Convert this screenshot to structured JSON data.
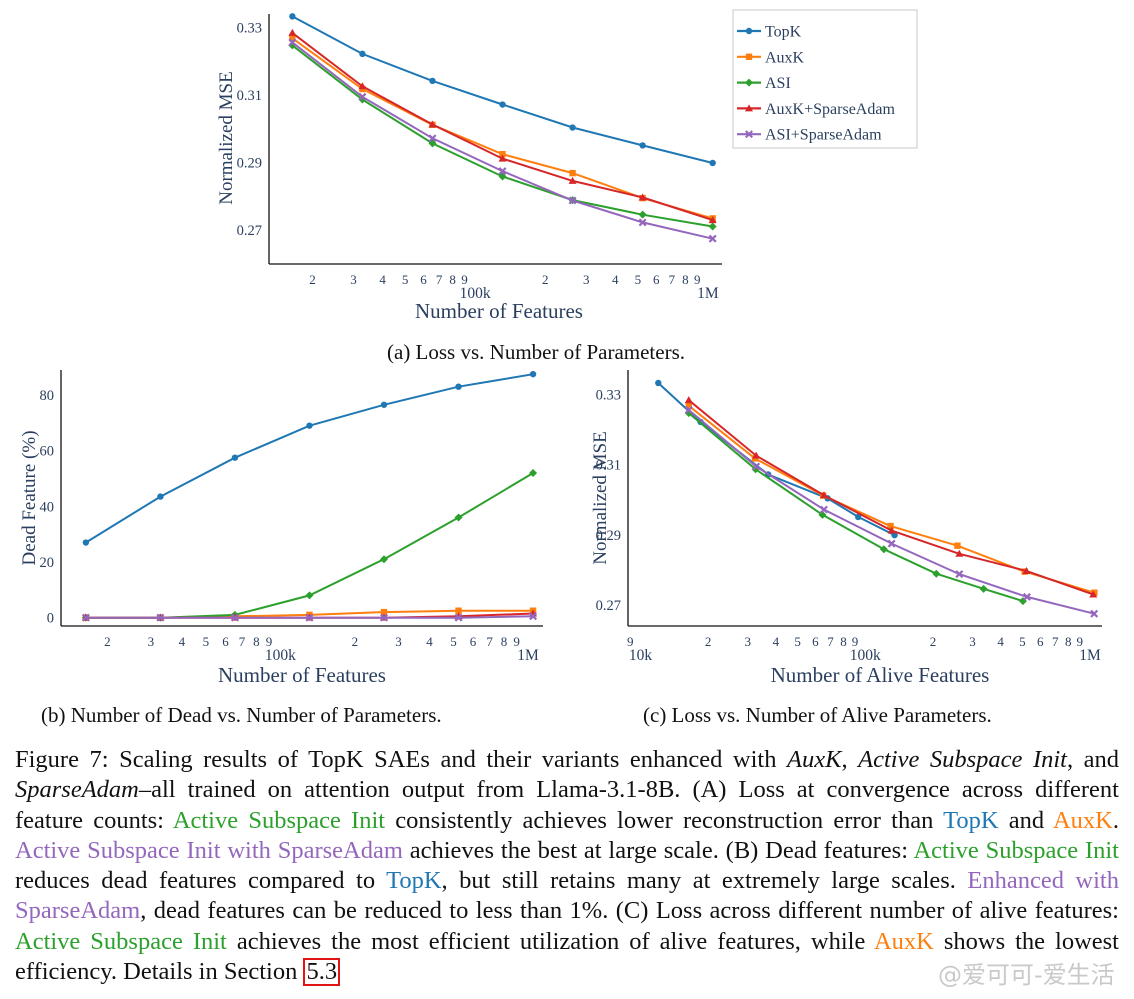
{
  "colors": {
    "TopK": "#1f77b4",
    "AuxK": "#ff7f0e",
    "ASI": "#2ca02c",
    "AuxK+SparseAdam": "#d62728",
    "ASI+SparseAdam": "#9467bd"
  },
  "chart_data": [
    {
      "id": "a",
      "type": "line",
      "xscale": "log",
      "xlim": [
        13000,
        1150000
      ],
      "ylim": [
        0.26,
        0.334
      ],
      "yticks": [
        0.27,
        0.29,
        0.31,
        0.33
      ],
      "ytick_labels": [
        "0.27",
        "0.29",
        "0.31",
        "0.33"
      ],
      "xticks": [
        20000,
        30000,
        40000,
        50000,
        60000,
        70000,
        80000,
        90000,
        100000,
        200000,
        300000,
        400000,
        500000,
        600000,
        700000,
        800000,
        900000,
        1000000
      ],
      "xtick_labels": [
        "2",
        "3",
        "4",
        "5",
        "6",
        "7",
        "8",
        "9",
        "100k",
        "2",
        "3",
        "4",
        "5",
        "6",
        "7",
        "8",
        "9",
        "1M"
      ],
      "xlabel": "Number of Features",
      "ylabel": "Normalized MSE",
      "legend": "top-right",
      "series": [
        {
          "name": "TopK",
          "marker": "circle",
          "x": [
            16384,
            32768,
            65536,
            131072,
            262144,
            524288,
            1048576
          ],
          "y": [
            0.3333,
            0.3222,
            0.3142,
            0.3072,
            0.3004,
            0.2951,
            0.2899
          ]
        },
        {
          "name": "AuxK",
          "marker": "square",
          "x": [
            16384,
            32768,
            65536,
            131072,
            262144,
            524288,
            1048576
          ],
          "y": [
            0.3268,
            0.3118,
            0.3012,
            0.2925,
            0.2869,
            0.2795,
            0.2735
          ]
        },
        {
          "name": "ASI",
          "marker": "diamond",
          "x": [
            16384,
            32768,
            65536,
            131072,
            262144,
            524288,
            1048576
          ],
          "y": [
            0.3247,
            0.3087,
            0.2957,
            0.2859,
            0.2789,
            0.2746,
            0.2711
          ]
        },
        {
          "name": "AuxK+SparseAdam",
          "marker": "triangle",
          "x": [
            16384,
            32768,
            65536,
            131072,
            262144,
            524288,
            1048576
          ],
          "y": [
            0.3284,
            0.3126,
            0.3013,
            0.2912,
            0.2846,
            0.2797,
            0.273
          ]
        },
        {
          "name": "ASI+SparseAdam",
          "marker": "x",
          "x": [
            16384,
            32768,
            65536,
            131072,
            262144,
            524288,
            1048576
          ],
          "y": [
            0.3256,
            0.3095,
            0.2972,
            0.2875,
            0.2788,
            0.2723,
            0.2675
          ]
        }
      ]
    },
    {
      "id": "b",
      "type": "line",
      "xscale": "log",
      "xlim": [
        13000,
        1150000
      ],
      "ylim": [
        -3,
        89
      ],
      "yticks": [
        0,
        20,
        40,
        60,
        80
      ],
      "ytick_labels": [
        "0",
        "20",
        "40",
        "60",
        "80"
      ],
      "xticks": [
        20000,
        30000,
        40000,
        50000,
        60000,
        70000,
        80000,
        90000,
        100000,
        200000,
        300000,
        400000,
        500000,
        600000,
        700000,
        800000,
        900000,
        1000000
      ],
      "xtick_labels": [
        "2",
        "3",
        "4",
        "5",
        "6",
        "7",
        "8",
        "9",
        "100k",
        "2",
        "3",
        "4",
        "5",
        "6",
        "7",
        "8",
        "9",
        "1M"
      ],
      "xlabel": "Number of Features",
      "ylabel": "Dead Feature (%)",
      "series": [
        {
          "name": "TopK",
          "marker": "circle",
          "x": [
            16384,
            32768,
            65536,
            131072,
            262144,
            524288,
            1048576
          ],
          "y": [
            27,
            43.5,
            57.5,
            69,
            76.5,
            83,
            87.5
          ]
        },
        {
          "name": "AuxK",
          "marker": "square",
          "x": [
            16384,
            32768,
            65536,
            131072,
            262144,
            524288,
            1048576
          ],
          "y": [
            0,
            0,
            0.5,
            1,
            2,
            2.5,
            2.5
          ]
        },
        {
          "name": "ASI",
          "marker": "diamond",
          "x": [
            16384,
            32768,
            65536,
            131072,
            262144,
            524288,
            1048576
          ],
          "y": [
            0,
            0,
            1,
            8,
            21,
            36,
            52
          ]
        },
        {
          "name": "AuxK+SparseAdam",
          "marker": "triangle",
          "x": [
            16384,
            32768,
            65536,
            131072,
            262144,
            524288,
            1048576
          ],
          "y": [
            0,
            0,
            0,
            0,
            0,
            0.5,
            1.5
          ]
        },
        {
          "name": "ASI+SparseAdam",
          "marker": "x",
          "x": [
            16384,
            32768,
            65536,
            131072,
            262144,
            524288,
            1048576
          ],
          "y": [
            0,
            0,
            0,
            0,
            0,
            0,
            0.5
          ]
        }
      ]
    },
    {
      "id": "c",
      "type": "line",
      "xscale": "log",
      "xlim": [
        8800,
        1130000
      ],
      "ylim": [
        0.264,
        0.337
      ],
      "yticks": [
        0.27,
        0.29,
        0.31,
        0.33
      ],
      "ytick_labels": [
        "0.27",
        "0.29",
        "0.31",
        "0.33"
      ],
      "xticks": [
        9000,
        10000,
        20000,
        30000,
        40000,
        50000,
        60000,
        70000,
        80000,
        90000,
        100000,
        200000,
        300000,
        400000,
        500000,
        600000,
        700000,
        800000,
        900000,
        1000000
      ],
      "xtick_labels": [
        "9",
        "10k",
        "2",
        "3",
        "4",
        "5",
        "6",
        "7",
        "8",
        "9",
        "100k",
        "2",
        "3",
        "4",
        "5",
        "6",
        "7",
        "8",
        "9",
        "1M"
      ],
      "xlabel": "Number of Alive Features",
      "ylabel": "Normalized MSE",
      "series": [
        {
          "name": "TopK",
          "marker": "circle",
          "x": [
            12000,
            18500,
            37000,
            68000,
            93000,
            135000
          ],
          "y": [
            0.3333,
            0.3222,
            0.3072,
            0.3004,
            0.2951,
            0.2899
          ]
        },
        {
          "name": "AuxK",
          "marker": "square",
          "x": [
            16400,
            32300,
            65000,
            129500,
            257000,
            512000,
            1045000
          ],
          "y": [
            0.3268,
            0.3118,
            0.3012,
            0.2925,
            0.2869,
            0.2795,
            0.2735
          ]
        },
        {
          "name": "ASI",
          "marker": "diamond",
          "x": [
            16400,
            32500,
            64500,
            121000,
            207000,
            336000,
            503000
          ],
          "y": [
            0.3247,
            0.3087,
            0.2957,
            0.2859,
            0.2789,
            0.2746,
            0.2711
          ]
        },
        {
          "name": "AuxK+SparseAdam",
          "marker": "triangle",
          "x": [
            16400,
            32700,
            65500,
            131000,
            262000,
            521000,
            1033000
          ],
          "y": [
            0.3284,
            0.3126,
            0.3013,
            0.2912,
            0.2846,
            0.2797,
            0.273
          ]
        },
        {
          "name": "ASI+SparseAdam",
          "marker": "x",
          "x": [
            16400,
            32700,
            65500,
            131000,
            262000,
            524000,
            1043000
          ],
          "y": [
            0.3256,
            0.3095,
            0.2972,
            0.2875,
            0.2788,
            0.2723,
            0.2675
          ]
        }
      ]
    }
  ],
  "captions": {
    "a": "(a) Loss vs. Number of Parameters.",
    "b": "(b) Number of Dead vs. Number of Parameters.",
    "c": "(c) Loss vs. Number of Alive Parameters."
  },
  "figure_caption": {
    "f1": "Figure 7: Scaling results of TopK SAEs and their variants enhanced with ",
    "f2": "AuxK",
    "f3": ", ",
    "f4": "Active Subspace Init",
    "f5": ", and ",
    "f6": "SparseAdam",
    "f7": "–all trained on attention output from Llama-3.1-8B. (A) Loss at convergence across different feature counts: ",
    "f8": "Active Subspace Init",
    "f9": " consistently achieves lower reconstruction error than ",
    "f10": "TopK",
    "f11": " and ",
    "f12": "AuxK",
    "f13": ". ",
    "f14": "Active Subspace Init with SparseAdam",
    "f15": " achieves the best at large scale. (B) Dead features: ",
    "f16": "Active Subspace Init",
    "f17": " reduces dead features compared to ",
    "f18": "TopK",
    "f19": ", but still retains many at extremely large scales. ",
    "f20": "Enhanced with SparseAdam",
    "f21": ", dead features can be reduced to less than 1%. (C) Loss across different number of alive features: ",
    "f22": "Active Subspace Init",
    "f23": " achieves the most efficient utilization of alive features, while ",
    "f24": "AuxK",
    "f25": " shows the lowest efficiency. Details in Section ",
    "f26": "5.3"
  },
  "watermark": "@爱可可-爱生活"
}
